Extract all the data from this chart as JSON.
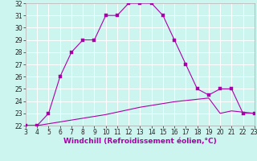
{
  "title": "",
  "xlabel": "Windchill (Refroidissement éolien,°C)",
  "bg_color": "#cdf5ef",
  "grid_color": "#aadddd",
  "line_color": "#aa00aa",
  "xlim": [
    3,
    23
  ],
  "ylim": [
    22,
    32
  ],
  "xticks": [
    3,
    4,
    5,
    6,
    7,
    8,
    9,
    10,
    11,
    12,
    13,
    14,
    15,
    16,
    17,
    18,
    19,
    20,
    21,
    22,
    23
  ],
  "yticks": [
    22,
    23,
    24,
    25,
    26,
    27,
    28,
    29,
    30,
    31,
    32
  ],
  "curve1_x": [
    3,
    4,
    5,
    6,
    7,
    8,
    9,
    10,
    11,
    12,
    13,
    14,
    15,
    16,
    17,
    18,
    19,
    20,
    21,
    22,
    23
  ],
  "curve1_y": [
    22,
    22,
    23,
    26,
    28,
    29,
    29,
    31,
    31,
    32,
    32,
    32,
    31,
    29,
    27,
    25,
    24.5,
    25,
    25,
    23,
    23
  ],
  "curve2_x": [
    3,
    4,
    5,
    6,
    7,
    8,
    9,
    10,
    11,
    12,
    13,
    14,
    15,
    16,
    17,
    18,
    19,
    20,
    21,
    22,
    23
  ],
  "curve2_y": [
    22,
    22,
    22.15,
    22.3,
    22.45,
    22.6,
    22.75,
    22.9,
    23.1,
    23.3,
    23.5,
    23.65,
    23.8,
    23.95,
    24.05,
    24.15,
    24.25,
    23.0,
    23.2,
    23.1,
    23.0
  ],
  "xlabel_color": "#aa00aa",
  "xlabel_fontsize": 6.5,
  "tick_fontsize": 5.5,
  "linewidth": 0.8,
  "markersize": 2.2
}
